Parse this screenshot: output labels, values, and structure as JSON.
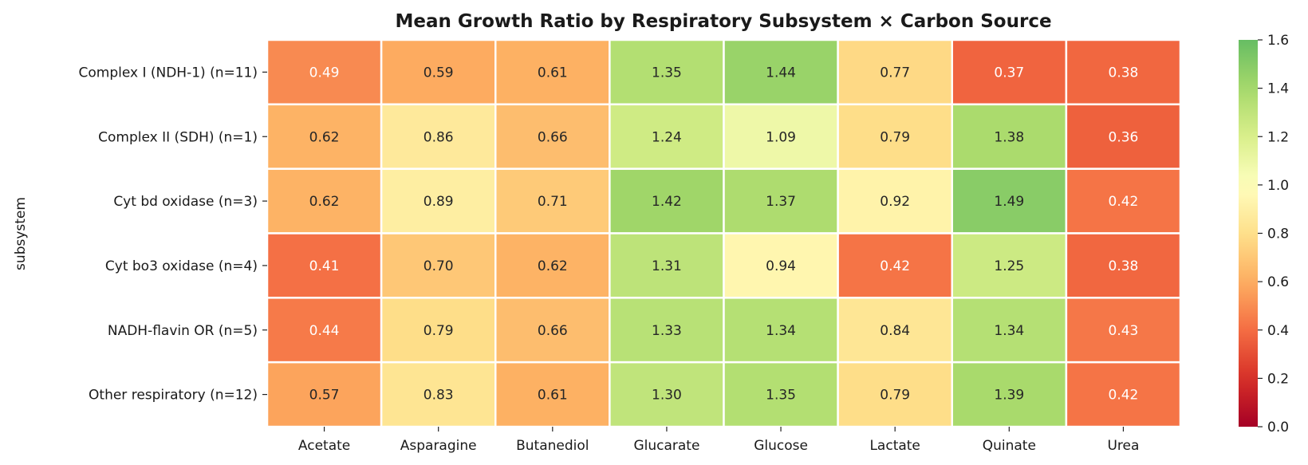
{
  "chart_data": {
    "type": "heatmap",
    "title": "Mean Growth Ratio by Respiratory Subsystem × Carbon Source",
    "xlabel": "",
    "ylabel": "subsystem",
    "columns": [
      "Acetate",
      "Asparagine",
      "Butanediol",
      "Glucarate",
      "Glucose",
      "Lactate",
      "Quinate",
      "Urea"
    ],
    "rows": [
      "Complex I (NDH-1) (n=11)",
      "Complex II (SDH) (n=1)",
      "Cyt bd oxidase (n=3)",
      "Cyt bo3 oxidase (n=4)",
      "NADH-flavin OR (n=5)",
      "Other respiratory (n=12)"
    ],
    "values": [
      [
        0.49,
        0.59,
        0.61,
        1.35,
        1.44,
        0.77,
        0.37,
        0.38
      ],
      [
        0.62,
        0.86,
        0.66,
        1.24,
        1.09,
        0.79,
        1.38,
        0.36
      ],
      [
        0.62,
        0.89,
        0.71,
        1.42,
        1.37,
        0.92,
        1.49,
        0.42
      ],
      [
        0.41,
        0.7,
        0.62,
        1.31,
        0.94,
        0.42,
        1.25,
        0.38
      ],
      [
        0.44,
        0.79,
        0.66,
        1.33,
        1.34,
        0.84,
        1.34,
        0.43
      ],
      [
        0.57,
        0.83,
        0.61,
        1.3,
        1.35,
        0.79,
        1.39,
        0.42
      ]
    ],
    "colormap": "RdYlGn",
    "center": 1.0,
    "vmin": 0.0,
    "vmax": 1.6,
    "colorbar_ticks": [
      "0.0",
      "0.2",
      "0.4",
      "0.6",
      "0.8",
      "1.0",
      "1.2",
      "1.4",
      "1.6"
    ],
    "annotation_format": "0.00"
  }
}
